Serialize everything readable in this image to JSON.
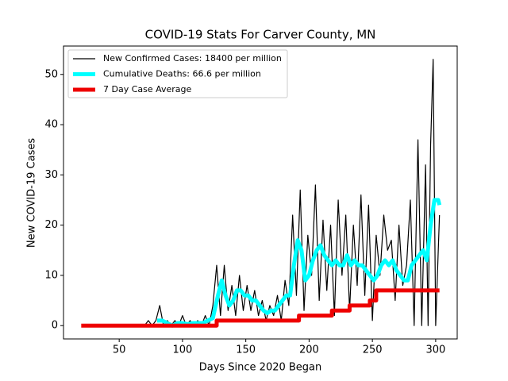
{
  "chart_data": {
    "type": "line",
    "title": "COVID-19 Stats For Carver County, MN",
    "x_label": "Days Since 2020 Began",
    "y_label": "New COVID-19 Cases",
    "xlim": [
      6,
      317
    ],
    "ylim": [
      -2.65,
      55.65
    ],
    "xticks": [
      50,
      100,
      150,
      200,
      250,
      300
    ],
    "yticks": [
      0,
      10,
      20,
      30,
      40,
      50
    ],
    "legend": "upper left",
    "series": [
      {
        "name": "New Confirmed Cases: 18400 per million",
        "color": "#000000",
        "width": 1.2,
        "x": [
          70,
          73,
          76,
          79,
          82,
          85,
          88,
          91,
          94,
          97,
          100,
          103,
          106,
          109,
          112,
          115,
          118,
          121,
          124,
          127,
          130,
          133,
          136,
          139,
          142,
          145,
          148,
          151,
          154,
          157,
          160,
          163,
          166,
          169,
          172,
          175,
          178,
          181,
          184,
          187,
          190,
          193,
          196,
          199,
          202,
          205,
          208,
          211,
          214,
          217,
          220,
          223,
          226,
          229,
          232,
          235,
          238,
          241,
          244,
          247,
          250,
          253,
          256,
          259,
          262,
          265,
          268,
          271,
          274,
          277,
          280,
          283,
          286,
          289,
          292,
          294,
          296,
          298,
          300,
          303
        ],
        "values": [
          0,
          1,
          0,
          1,
          4,
          0,
          1,
          0,
          1,
          0,
          2,
          0,
          1,
          0,
          1,
          0,
          2,
          0,
          4,
          12,
          2,
          12,
          3,
          8,
          2,
          10,
          3,
          8,
          3,
          7,
          2,
          5,
          1,
          4,
          2,
          6,
          1,
          9,
          4,
          22,
          6,
          27,
          3,
          18,
          10,
          28,
          5,
          21,
          7,
          20,
          2,
          25,
          10,
          22,
          3,
          20,
          8,
          26,
          6,
          24,
          1,
          18,
          10,
          22,
          15,
          17,
          5,
          20,
          8,
          12,
          25,
          0,
          37,
          0,
          32,
          0,
          36,
          53,
          0,
          22
        ]
      },
      {
        "name": "Cumulative Deaths: 66.6 per million",
        "color": "#00ffff",
        "width": 5,
        "x": [
          80,
          84,
          88,
          92,
          96,
          100,
          104,
          108,
          112,
          116,
          120,
          124,
          128,
          131,
          134,
          137,
          140,
          143,
          146,
          149,
          152,
          155,
          158,
          161,
          164,
          167,
          170,
          173,
          176,
          179,
          182,
          185,
          188,
          191,
          194,
          197,
          200,
          203,
          206,
          209,
          212,
          215,
          218,
          221,
          224,
          227,
          230,
          233,
          236,
          239,
          242,
          245,
          248,
          251,
          254,
          257,
          260,
          263,
          266,
          269,
          272,
          275,
          278,
          281,
          284,
          287,
          290,
          293,
          296,
          299,
          302,
          303
        ],
        "values": [
          1,
          1,
          0.5,
          0,
          0.5,
          0.5,
          0.3,
          0.5,
          0.5,
          0.5,
          1,
          1.5,
          6,
          9,
          6,
          4,
          5,
          7,
          7,
          6,
          6,
          5,
          5,
          4,
          3,
          2.5,
          3,
          3,
          4,
          5,
          6,
          6,
          12,
          17,
          15,
          9,
          10,
          13,
          15,
          16,
          14,
          13,
          12,
          13,
          12,
          12,
          14,
          12,
          13,
          12,
          12,
          11,
          10,
          9,
          10,
          12,
          13,
          12,
          13,
          11,
          10,
          9,
          9,
          12,
          13,
          14,
          15,
          13,
          20,
          25,
          25,
          24
        ]
      },
      {
        "name": "7 Day Case Average",
        "color": "#ee0000",
        "width": 5,
        "x": [
          20,
          127,
          127,
          192,
          192,
          218,
          218,
          232,
          232,
          248,
          248,
          253,
          253,
          303
        ],
        "values": [
          0,
          0,
          1,
          1,
          2,
          2,
          3,
          3,
          4,
          4,
          5,
          5,
          7,
          7
        ]
      }
    ]
  }
}
